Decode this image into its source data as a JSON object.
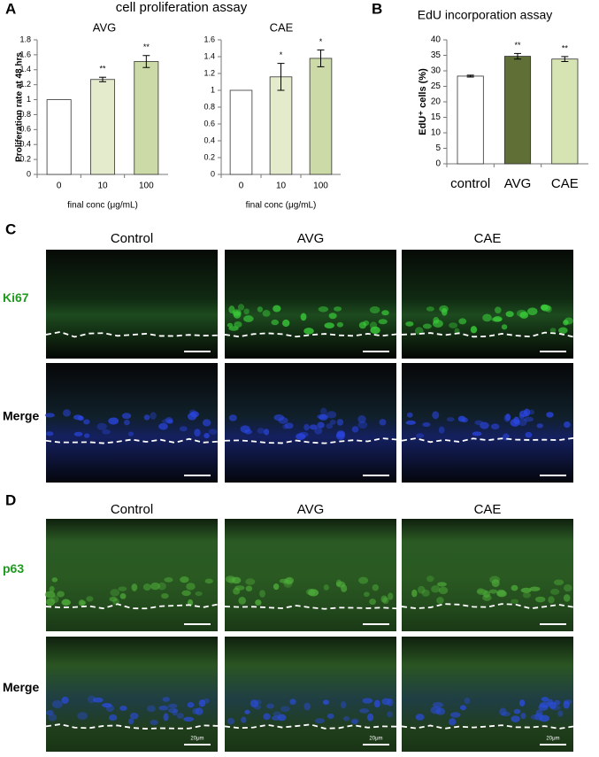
{
  "chart_data": [
    {
      "type": "bar",
      "panel_label": "A",
      "title": "cell proliferation assay",
      "subtitle": "AVG",
      "ylabel": "Proliferation rate at 48 hrs",
      "xlabel": "final conc (μg/mL)",
      "categories": [
        "0",
        "10",
        "100"
      ],
      "values": [
        1,
        1.27,
        1.51
      ],
      "errors": [
        0,
        0.03,
        0.08
      ],
      "annotations": [
        null,
        "**",
        "**"
      ],
      "colors": [
        "#ffffff",
        "#e3ebcc",
        "#cbdaa6"
      ],
      "ylim": [
        0,
        1.8
      ],
      "yticks": [
        0,
        0.2,
        0.4,
        0.6,
        0.8,
        1,
        1.2,
        1.4,
        1.6,
        1.8
      ]
    },
    {
      "type": "bar",
      "subtitle": "CAE",
      "xlabel": "final conc (μg/mL)",
      "categories": [
        "0",
        "10",
        "100"
      ],
      "values": [
        1,
        1.16,
        1.38
      ],
      "errors": [
        0,
        0.16,
        0.1
      ],
      "annotations": [
        null,
        "*",
        "*"
      ],
      "colors": [
        "#ffffff",
        "#e3ebcc",
        "#cbdaa6"
      ],
      "ylim": [
        0,
        1.6
      ],
      "yticks": [
        0,
        0.2,
        0.4,
        0.6,
        0.8,
        1,
        1.2,
        1.4,
        1.6
      ]
    },
    {
      "type": "bar",
      "panel_label": "B",
      "title": "EdU incorporation assay",
      "ylabel": "EdU⁺ cells (%)",
      "categories": [
        "control",
        "AVG",
        "CAE"
      ],
      "values": [
        28.3,
        34.7,
        33.8
      ],
      "errors": [
        0.3,
        0.9,
        0.8
      ],
      "annotations": [
        null,
        "**",
        "**"
      ],
      "colors": [
        "#ffffff",
        "#5f6f36",
        "#d6e3b3"
      ],
      "ylim": [
        0,
        40
      ],
      "yticks": [
        0,
        5,
        10,
        15,
        20,
        25,
        30,
        35,
        40
      ]
    }
  ],
  "panels": [
    {
      "label": "C",
      "columns": [
        "Control",
        "AVG",
        "CAE"
      ],
      "rows": [
        "Ki67",
        "Merge"
      ]
    },
    {
      "label": "D",
      "columns": [
        "Control",
        "AVG",
        "CAE"
      ],
      "rows": [
        "p63",
        "Merge"
      ],
      "scale_bar": "20μm"
    }
  ]
}
